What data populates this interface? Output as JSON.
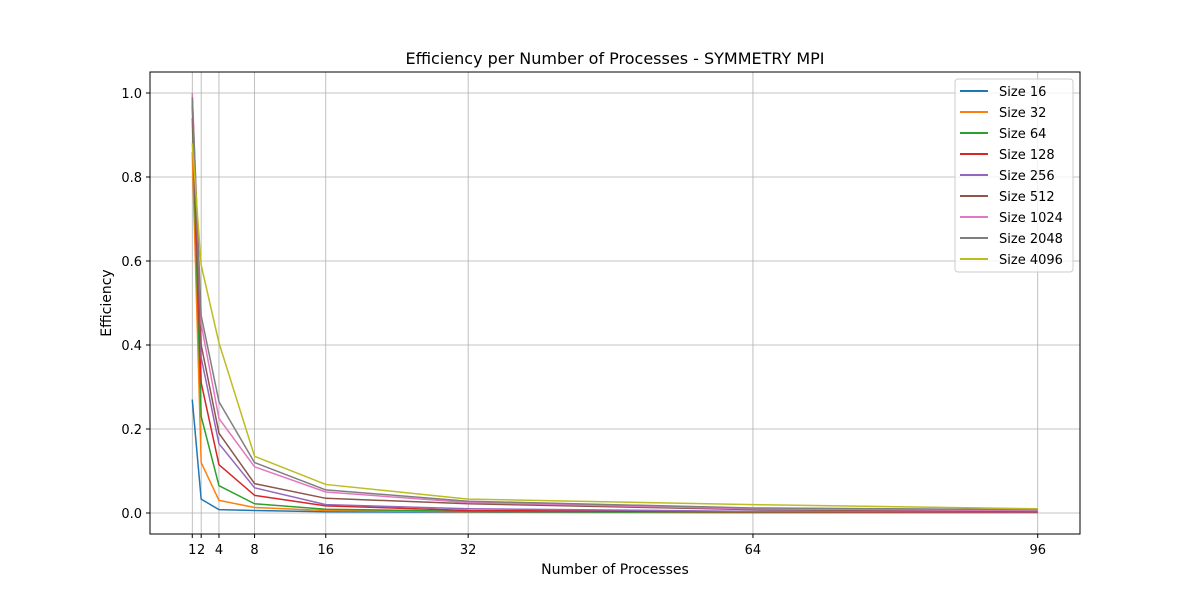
{
  "chart_data": {
    "type": "line",
    "title": "Efficiency per Number of Processes - SYMMETRY MPI",
    "xlabel": "Number of Processes",
    "ylabel": "Efficiency",
    "x": [
      1,
      2,
      4,
      8,
      16,
      32,
      64,
      96
    ],
    "x_ticks": [
      1,
      2,
      4,
      8,
      16,
      32,
      64,
      96
    ],
    "x_tick_labels": [
      "1",
      "2",
      "4",
      "8",
      "16",
      "32",
      "64",
      "96"
    ],
    "y_ticks": [
      0.0,
      0.2,
      0.4,
      0.6,
      0.8,
      1.0
    ],
    "y_tick_labels": [
      "0.0",
      "0.2",
      "0.4",
      "0.6",
      "0.8",
      "1.0"
    ],
    "xlim": [
      -3.75,
      100.75
    ],
    "ylim": [
      -0.05,
      1.05
    ],
    "grid": true,
    "legend_position": "top-right",
    "series": [
      {
        "name": "Size 16",
        "color": "#1f77b4",
        "values": [
          0.27,
          0.033,
          0.008,
          0.006,
          0.003,
          0.002,
          0.001,
          0.001
        ]
      },
      {
        "name": "Size 32",
        "color": "#ff7f0e",
        "values": [
          0.86,
          0.12,
          0.03,
          0.013,
          0.006,
          0.003,
          0.002,
          0.001
        ]
      },
      {
        "name": "Size 64",
        "color": "#2ca02c",
        "values": [
          0.94,
          0.23,
          0.065,
          0.022,
          0.009,
          0.004,
          0.002,
          0.002
        ]
      },
      {
        "name": "Size 128",
        "color": "#d62728",
        "values": [
          0.97,
          0.31,
          0.115,
          0.042,
          0.017,
          0.006,
          0.003,
          0.002
        ]
      },
      {
        "name": "Size 256",
        "color": "#9467bd",
        "values": [
          0.98,
          0.37,
          0.165,
          0.06,
          0.02,
          0.01,
          0.004,
          0.003
        ]
      },
      {
        "name": "Size 512",
        "color": "#8c564b",
        "values": [
          0.99,
          0.4,
          0.19,
          0.07,
          0.035,
          0.022,
          0.008,
          0.004
        ]
      },
      {
        "name": "Size 1024",
        "color": "#e377c2",
        "values": [
          1.0,
          0.45,
          0.225,
          0.11,
          0.05,
          0.025,
          0.01,
          0.006
        ]
      },
      {
        "name": "Size 2048",
        "color": "#7f7f7f",
        "values": [
          0.99,
          0.47,
          0.265,
          0.12,
          0.055,
          0.028,
          0.012,
          0.008
        ]
      },
      {
        "name": "Size 4096",
        "color": "#bcbd22",
        "values": [
          0.88,
          0.59,
          0.405,
          0.135,
          0.068,
          0.033,
          0.02,
          0.01
        ]
      }
    ]
  }
}
